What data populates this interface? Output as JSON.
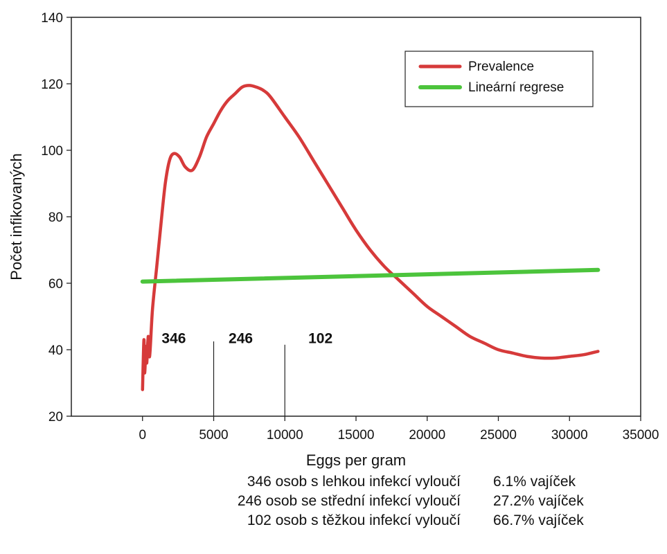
{
  "chart_data": {
    "type": "line",
    "title": "",
    "xlabel": "Eggs per gram",
    "ylabel": "Počet infikovaných",
    "xlim": [
      -5000,
      35000
    ],
    "ylim": [
      20,
      140
    ],
    "x_ticks": [
      0,
      5000,
      10000,
      15000,
      20000,
      25000,
      30000,
      35000
    ],
    "y_ticks": [
      20,
      40,
      60,
      80,
      100,
      120,
      140
    ],
    "grid": false,
    "legend_position": "top-right",
    "series": [
      {
        "name": "Prevalence",
        "color": "#d63a3a",
        "x": [
          0,
          100,
          150,
          250,
          300,
          400,
          500,
          700,
          1000,
          1300,
          1600,
          1900,
          2200,
          2600,
          3000,
          3500,
          4000,
          4500,
          5000,
          5500,
          6000,
          6500,
          7000,
          7500,
          8000,
          8500,
          9000,
          10000,
          11000,
          12000,
          13000,
          14000,
          15000,
          16000,
          17000,
          18000,
          19000,
          20000,
          21000,
          22000,
          23000,
          24000,
          25000,
          26000,
          27000,
          28000,
          29000,
          30000,
          31000,
          32000
        ],
        "y": [
          28,
          43,
          33,
          41,
          36,
          44,
          38,
          52,
          65,
          78,
          90,
          97,
          99,
          98,
          95,
          94,
          98,
          104,
          108,
          112,
          115,
          117,
          119,
          119.5,
          119,
          118,
          116,
          110,
          104,
          97,
          90,
          83,
          76,
          70,
          65,
          61,
          57,
          53,
          50,
          47,
          44,
          42,
          40,
          39,
          38,
          37.5,
          37.5,
          38,
          38.5,
          39.5
        ]
      },
      {
        "name": "Lineární regrese",
        "color": "#4cc43c",
        "x": [
          0,
          32000
        ],
        "y": [
          60.5,
          64
        ]
      }
    ],
    "annotations": [
      {
        "label": "346",
        "x": 2200,
        "y": 42
      },
      {
        "label": "246",
        "x": 6900,
        "y": 42
      },
      {
        "label": "102",
        "x": 12500,
        "y": 42
      }
    ],
    "divider_lines": [
      {
        "x": 5000,
        "y_top": 42.5
      },
      {
        "x": 10000,
        "y_top": 41.5
      }
    ]
  },
  "summary": [
    {
      "desc": "346 osob s lehkou infekcí vyloučí",
      "pct": "6.1% vajíček"
    },
    {
      "desc": "246 osob se střední infekcí vyloučí",
      "pct": "27.2% vajíček"
    },
    {
      "desc": "102 osob s těžkou infekcí vyloučí",
      "pct": "66.7%  vajíček"
    }
  ]
}
